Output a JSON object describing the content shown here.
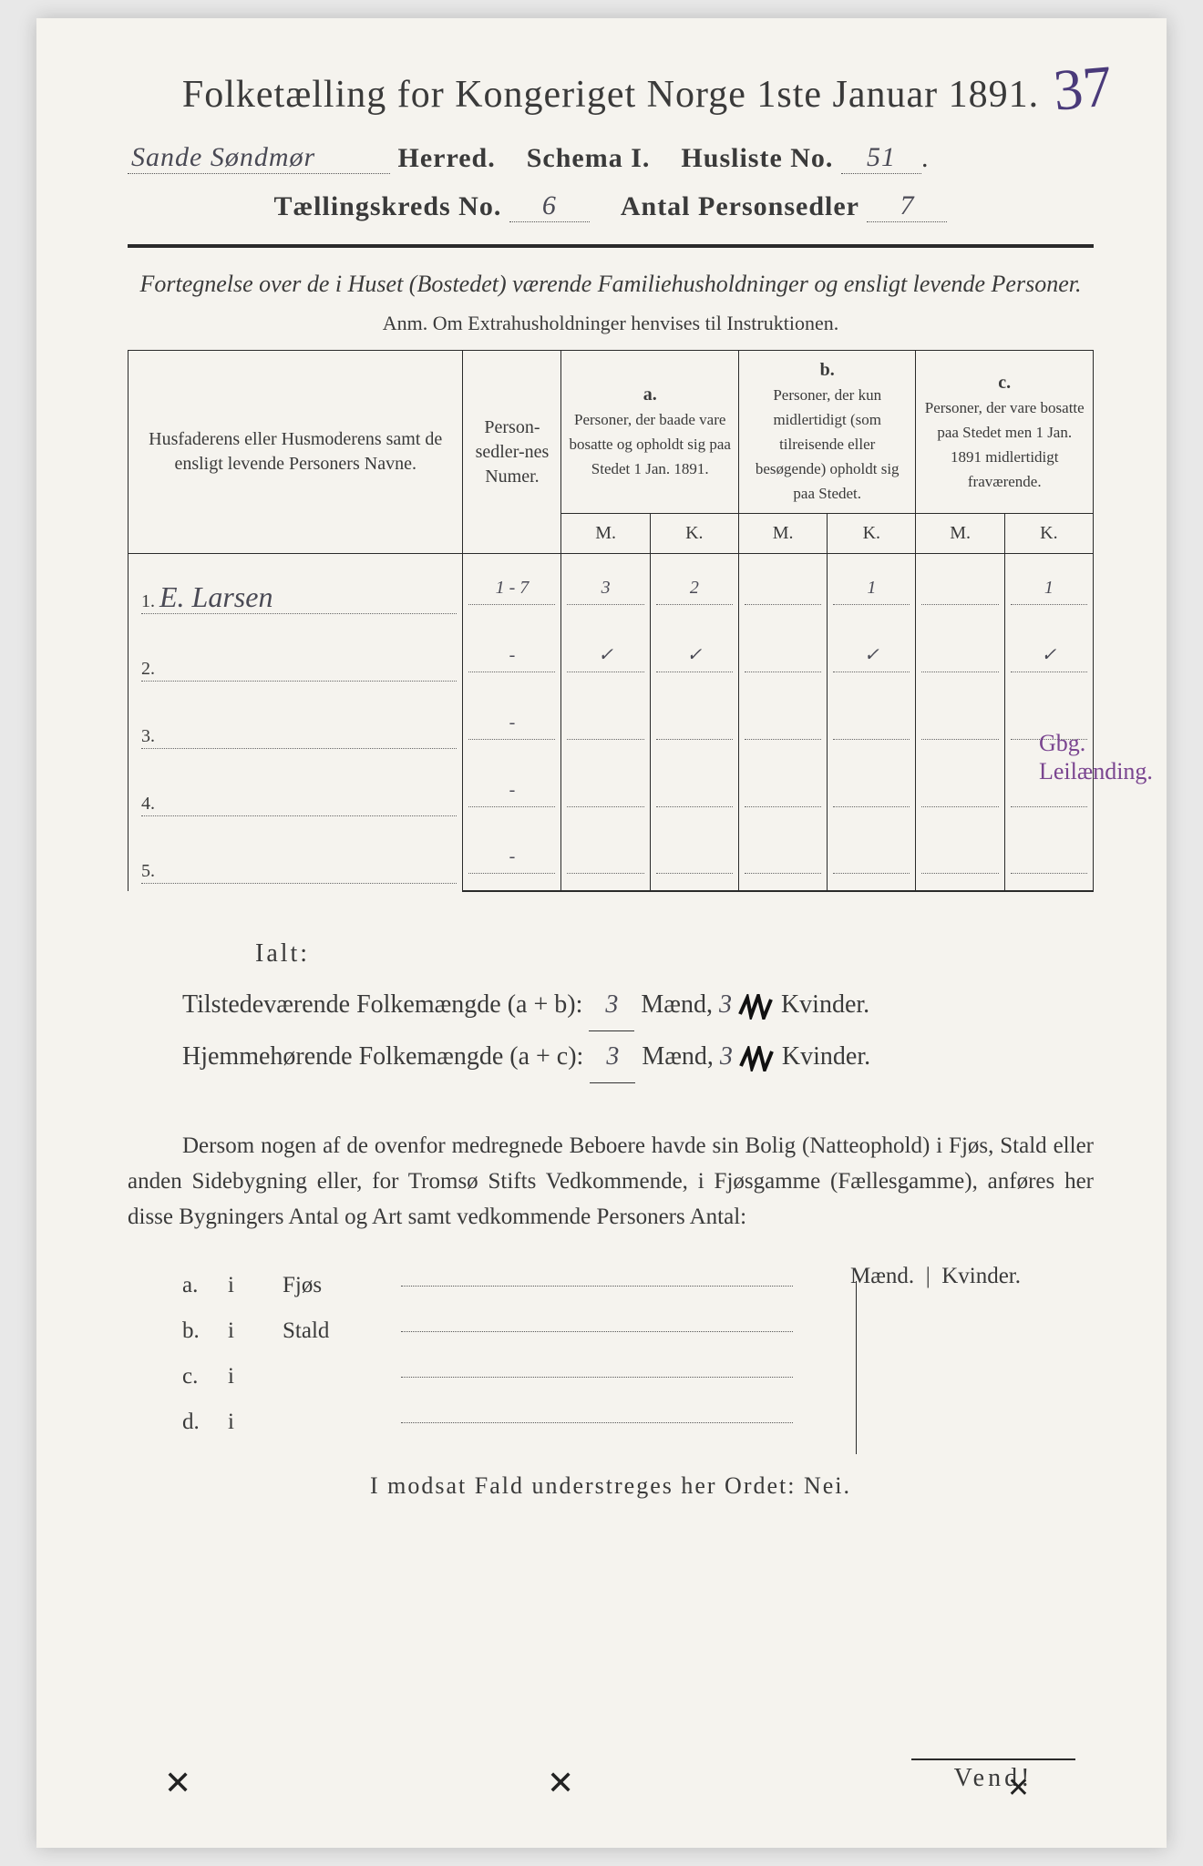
{
  "corner_number": "37",
  "title": "Folketælling for Kongeriget Norge 1ste Januar 1891.",
  "line2": {
    "herred_hw": "Sande Søndmør",
    "herred_label": "Herred.",
    "schema_label": "Schema I.",
    "husliste_label": "Husliste No.",
    "husliste_no": "51"
  },
  "line3": {
    "kreds_label": "Tællingskreds No.",
    "kreds_no": "6",
    "antal_label": "Antal Personsedler",
    "antal_no": "7"
  },
  "subtitle": "Fortegnelse over de i Huset (Bostedet) værende Familiehusholdninger og ensligt levende Personer.",
  "anm": "Anm.  Om Extrahusholdninger henvises til Instruktionen.",
  "table": {
    "head": {
      "names": "Husfaderens eller Husmoderens samt de ensligt levende Personers Navne.",
      "numer": "Person-sedler-nes Numer.",
      "a_label": "a.",
      "a_text": "Personer, der baade vare bosatte og opholdt sig paa Stedet 1 Jan. 1891.",
      "b_label": "b.",
      "b_text": "Personer, der kun midlertidigt (som tilreisende eller besøgende) opholdt sig paa Stedet.",
      "c_label": "c.",
      "c_text": "Personer, der vare bosatte paa Stedet men 1 Jan. 1891 midlertidigt fraværende.",
      "m": "M.",
      "k": "K."
    },
    "rows": [
      {
        "n": "1.",
        "name": "E. Larsen",
        "numer": "1 - 7",
        "aM": "3",
        "aK": "2",
        "bM": "",
        "bK": "1",
        "cM": "",
        "cK": "1"
      },
      {
        "n": "2.",
        "name": "",
        "numer": "-",
        "aM": "✓",
        "aK": "✓",
        "bM": "",
        "bK": "✓",
        "cM": "",
        "cK": "✓"
      },
      {
        "n": "3.",
        "name": "",
        "numer": "-",
        "aM": "",
        "aK": "",
        "bM": "",
        "bK": "",
        "cM": "",
        "cK": ""
      },
      {
        "n": "4.",
        "name": "",
        "numer": "-",
        "aM": "",
        "aK": "",
        "bM": "",
        "bK": "",
        "cM": "",
        "cK": ""
      },
      {
        "n": "5.",
        "name": "",
        "numer": "-",
        "aM": "",
        "aK": "",
        "bM": "",
        "bK": "",
        "cM": "",
        "cK": ""
      }
    ]
  },
  "margin_note": "Gbg. Leilænding.",
  "totals": {
    "ialt": "Ialt:",
    "tilstede_label": "Tilstedeværende Folkemængde (a + b):",
    "hjemme_label": "Hjemmehørende Folkemængde (a + c):",
    "maend": "Mænd,",
    "kvinder": "Kvinder.",
    "t_m": "3",
    "t_k": "3",
    "h_m": "3",
    "h_k": "3"
  },
  "para": "Dersom nogen af de ovenfor medregnede Beboere havde sin Bolig (Natteophold) i Fjøs, Stald eller anden Sidebygning eller, for Tromsø Stifts Vedkommende, i Fjøsgamme (Fællesgamme), anføres her disse Bygningers Antal og Art samt vedkommende Personers Antal:",
  "sidelist": {
    "m": "Mænd.",
    "k": "Kvinder.",
    "rows": [
      {
        "tag": "a.",
        "i": "i",
        "label": "Fjøs"
      },
      {
        "tag": "b.",
        "i": "i",
        "label": "Stald"
      },
      {
        "tag": "c.",
        "i": "i",
        "label": ""
      },
      {
        "tag": "d.",
        "i": "i",
        "label": ""
      }
    ]
  },
  "nei": "I modsat Fald understreges her Ordet: Nei.",
  "vend": "Vend!",
  "colors": {
    "paper": "#f5f3ee",
    "ink": "#3a3a3a",
    "blue_pencil": "#2a3a8a",
    "purple_pencil": "#7a4590"
  }
}
